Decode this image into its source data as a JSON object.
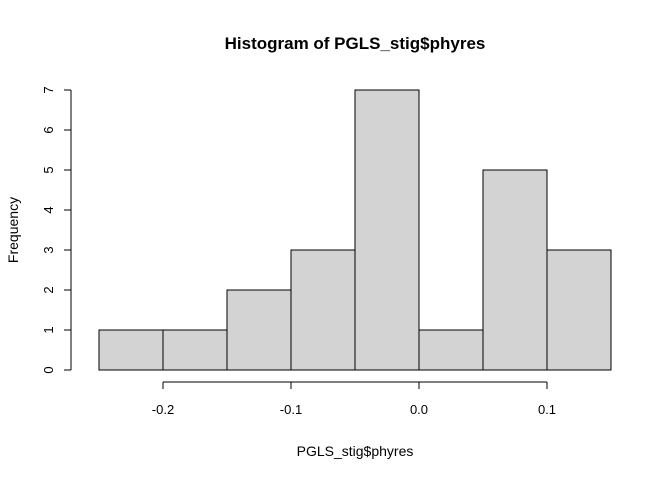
{
  "chart_data": {
    "type": "bar",
    "title": "Histogram of PGLS_stig$phyres",
    "xlabel": "PGLS_stig$phyres",
    "ylabel": "Frequency",
    "bins": [
      {
        "start": -0.25,
        "end": -0.2,
        "count": 1
      },
      {
        "start": -0.2,
        "end": -0.15,
        "count": 1
      },
      {
        "start": -0.15,
        "end": -0.1,
        "count": 2
      },
      {
        "start": -0.1,
        "end": -0.05,
        "count": 3
      },
      {
        "start": -0.05,
        "end": 0.0,
        "count": 7
      },
      {
        "start": 0.0,
        "end": 0.05,
        "count": 1
      },
      {
        "start": 0.05,
        "end": 0.1,
        "count": 5
      },
      {
        "start": 0.1,
        "end": 0.15,
        "count": 3
      }
    ],
    "xlim": [
      -0.25,
      0.15
    ],
    "ylim": [
      0,
      7
    ],
    "x_ticks": [
      {
        "value": -0.2,
        "label": "-0.2"
      },
      {
        "value": -0.1,
        "label": "-0.1"
      },
      {
        "value": 0.0,
        "label": "0.0"
      },
      {
        "value": 0.1,
        "label": "0.1"
      }
    ],
    "y_ticks": [
      {
        "value": 0,
        "label": "0"
      },
      {
        "value": 1,
        "label": "1"
      },
      {
        "value": 2,
        "label": "2"
      },
      {
        "value": 3,
        "label": "3"
      },
      {
        "value": 4,
        "label": "4"
      },
      {
        "value": 5,
        "label": "5"
      },
      {
        "value": 6,
        "label": "6"
      },
      {
        "value": 7,
        "label": "7"
      }
    ],
    "bar_color": "#d3d3d3",
    "grid": false
  }
}
